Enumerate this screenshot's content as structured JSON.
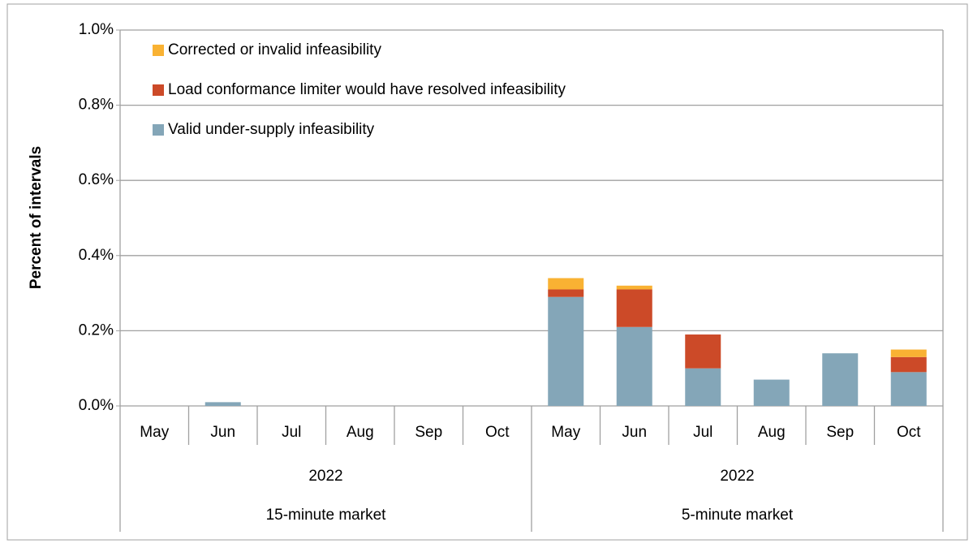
{
  "chart_data": {
    "type": "stacked_bar",
    "y_label": "Percent of intervals",
    "categories": [
      "May",
      "Jun",
      "Jul",
      "Aug",
      "Sep",
      "Oct",
      "May",
      "Jun",
      "Jul",
      "Aug",
      "Sep",
      "Oct"
    ],
    "groups": [
      {
        "year": "2022",
        "name": "15-minute market"
      },
      {
        "year": "2022",
        "name": "5-minute market"
      }
    ],
    "series": [
      {
        "name": "Valid under-supply infeasibility",
        "color": "#84a6b8",
        "values": [
          0,
          0.01,
          0,
          0,
          0,
          0,
          0.29,
          0.21,
          0.1,
          0.07,
          0.14,
          0.09
        ]
      },
      {
        "name": "Load conformance limiter would have resolved infeasibility",
        "color": "#cc4a28",
        "values": [
          0,
          0,
          0,
          0,
          0,
          0,
          0.02,
          0.1,
          0.09,
          0,
          0,
          0.04
        ]
      },
      {
        "name": "Corrected or invalid infeasibility",
        "color": "#f9b233",
        "values": [
          0,
          0,
          0,
          0,
          0,
          0,
          0.03,
          0.01,
          0,
          0,
          0,
          0.02
        ]
      }
    ],
    "ylim": [
      0,
      1.0
    ],
    "yticks": [
      {
        "value": 0,
        "label": "0.0%"
      },
      {
        "value": 0.2,
        "label": "0.2%"
      },
      {
        "value": 0.4,
        "label": "0.4%"
      },
      {
        "value": 0.6,
        "label": "0.6%"
      },
      {
        "value": 0.8,
        "label": "0.8%"
      },
      {
        "value": 1.0,
        "label": "1.0%"
      }
    ],
    "grid": true,
    "legend": "top-left"
  }
}
